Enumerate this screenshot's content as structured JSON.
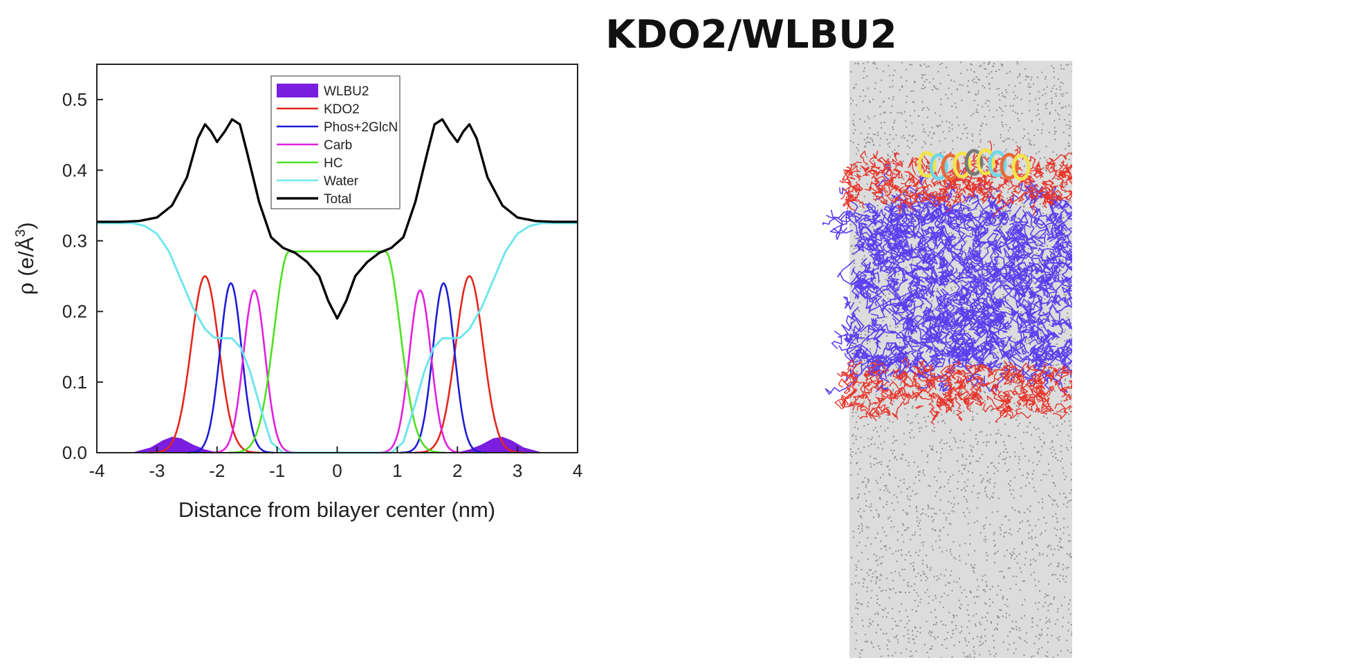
{
  "figure": {
    "title": "KDO2/WLBU2"
  },
  "chart_data": {
    "type": "line",
    "title": "KDO2/WLBU2",
    "xlabel": "Distance from bilayer center (nm)",
    "ylabel": "ρ (e/Å³)",
    "ylabel_parts": {
      "rho": "ρ",
      "unit_open": " (e/Å",
      "superscript": "3",
      "unit_close": ")"
    },
    "xlim": [
      -4,
      4
    ],
    "ylim": [
      0,
      0.55
    ],
    "xticks": [
      "-4",
      "-3",
      "-2",
      "-1",
      "0",
      "1",
      "2",
      "3",
      "4"
    ],
    "yticks": [
      "0.0",
      "0.1",
      "0.2",
      "0.3",
      "0.4",
      "0.5"
    ],
    "grid": false,
    "legend_position": "top-center",
    "series": [
      {
        "name": "WLBU2",
        "color": "#7a1ee0",
        "style": "area",
        "x": [
          -3.4,
          -3.1,
          -2.9,
          -2.75,
          -2.6,
          -2.4,
          -2.2,
          -2.05,
          -1.9,
          1.9,
          2.05,
          2.2,
          2.4,
          2.6,
          2.75,
          2.9,
          3.1,
          3.4
        ],
        "y": [
          0.0,
          0.007,
          0.017,
          0.022,
          0.02,
          0.011,
          0.004,
          0.001,
          0.0,
          0.0,
          0.001,
          0.004,
          0.011,
          0.02,
          0.022,
          0.017,
          0.007,
          0.0
        ]
      },
      {
        "name": "KDO2",
        "color": "#e3261c",
        "center": 2.2,
        "peak": 0.25,
        "width": 0.23
      },
      {
        "name": "Phos+2GlcN",
        "color": "#1c1cd6",
        "center": 1.77,
        "peak": 0.24,
        "width": 0.18
      },
      {
        "name": "Carb",
        "color": "#e21fe0",
        "center": 1.38,
        "peak": 0.23,
        "width": 0.18
      },
      {
        "name": "HC",
        "color": "#4ee01f",
        "plateau": 0.285,
        "edge": 0.8,
        "width": 0.25
      },
      {
        "name": "Water",
        "color": "#6fe6ee",
        "x": [
          0.9,
          1.1,
          1.3,
          1.45,
          1.6,
          1.75,
          1.9,
          2.05,
          2.2,
          2.4,
          2.6,
          2.8,
          3.0,
          3.2,
          3.4,
          4.0
        ],
        "y": [
          0.0,
          0.015,
          0.07,
          0.115,
          0.148,
          0.162,
          0.162,
          0.163,
          0.175,
          0.205,
          0.245,
          0.285,
          0.31,
          0.321,
          0.325,
          0.325
        ]
      },
      {
        "name": "Total",
        "color": "#000000",
        "x": [
          0.0,
          0.15,
          0.3,
          0.5,
          0.7,
          0.9,
          1.1,
          1.3,
          1.5,
          1.62,
          1.75,
          1.87,
          2.0,
          2.1,
          2.2,
          2.32,
          2.5,
          2.75,
          3.0,
          3.3,
          3.6,
          4.0
        ],
        "y": [
          0.19,
          0.215,
          0.25,
          0.27,
          0.283,
          0.29,
          0.305,
          0.355,
          0.425,
          0.465,
          0.472,
          0.455,
          0.44,
          0.455,
          0.465,
          0.445,
          0.39,
          0.35,
          0.333,
          0.328,
          0.327,
          0.327
        ]
      }
    ]
  }
}
